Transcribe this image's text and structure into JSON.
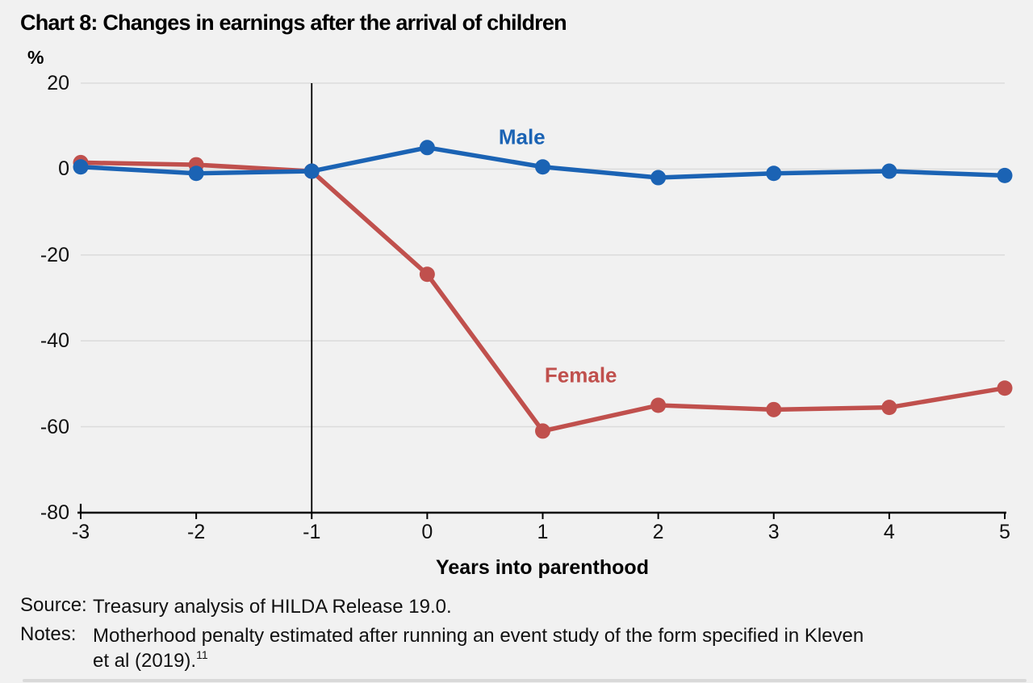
{
  "title": "Chart 8: Changes in earnings after the arrival of children",
  "chart_data": {
    "type": "line",
    "x": [
      -3,
      -2,
      -1,
      0,
      1,
      2,
      3,
      4,
      5
    ],
    "series": [
      {
        "name": "Male",
        "color": "#1b63b4",
        "values": [
          0.5,
          -1,
          -0.5,
          5,
          0.5,
          -2,
          -1,
          -0.5,
          -1.5
        ],
        "label_pos": {
          "x": 0.82,
          "y": 7.4
        }
      },
      {
        "name": "Female",
        "color": "#c0504d",
        "values": [
          1.5,
          1,
          -0.5,
          -24.5,
          -61,
          -55,
          -56,
          -55.5,
          -51
        ],
        "label_pos": {
          "x": 1.33,
          "y": -48
        }
      }
    ],
    "title": "Chart 8: Changes in earnings after the arrival of children",
    "xlabel": "Years into parenthood",
    "ylabel": "%",
    "xlim": [
      -3,
      5
    ],
    "ylim": [
      -80,
      20
    ],
    "xticks": [
      -3,
      -2,
      -1,
      0,
      1,
      2,
      3,
      4,
      5
    ],
    "yticks": [
      20,
      0,
      -20,
      -40,
      -60,
      -80
    ],
    "grid": "horizontal",
    "event_line_x": -1,
    "legend": "inline-labels"
  },
  "footer": {
    "source_label": "Source:",
    "source_text": "Treasury analysis of HILDA Release 19.0.",
    "notes_label": "Notes:",
    "notes_line1": "Motherhood penalty estimated after running an event study of the form specified in Kleven",
    "notes_line2": "et al (2019).",
    "notes_superscript": "11"
  }
}
